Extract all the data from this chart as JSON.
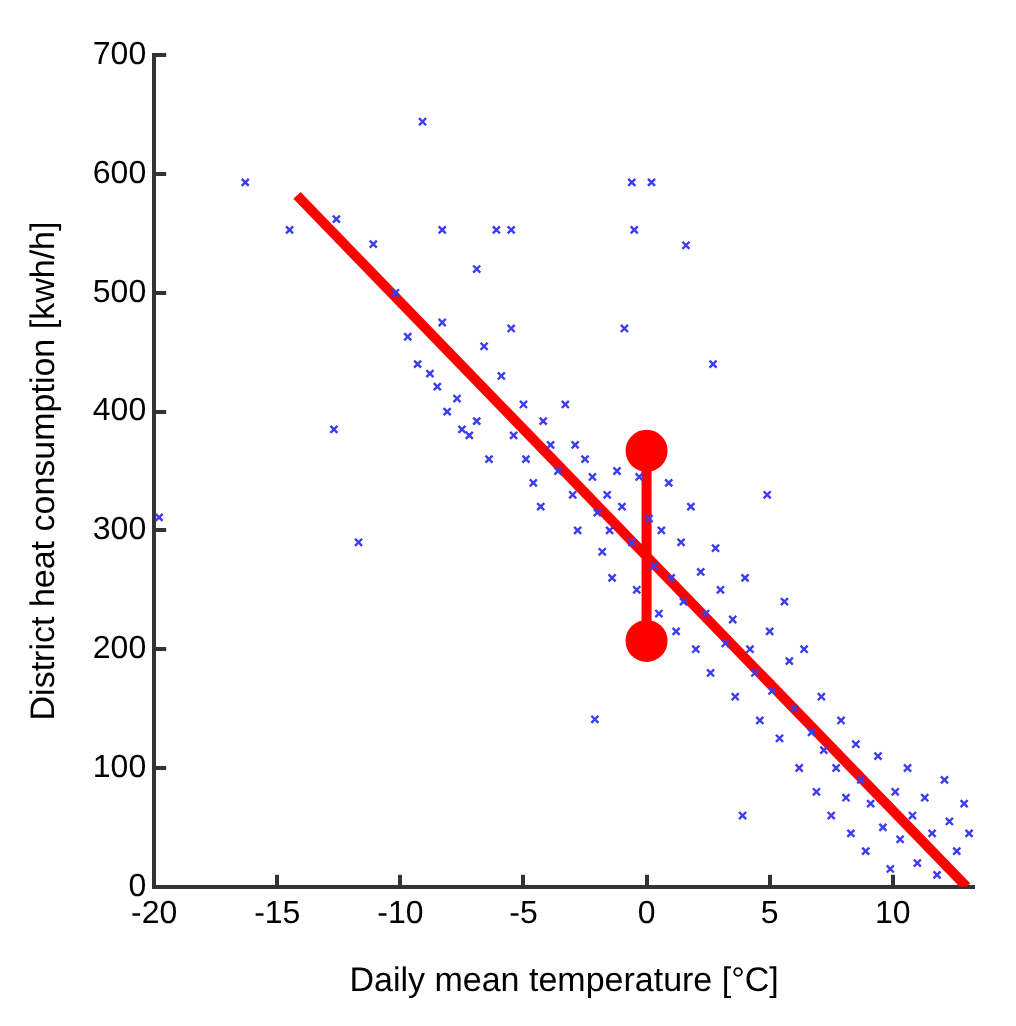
{
  "chart_data": {
    "type": "scatter",
    "xlabel": "Daily mean temperature [°C]",
    "ylabel": "District heat consumption [kwh/h]",
    "xlim": [
      -20,
      13.3
    ],
    "xticks": [
      -20,
      -15,
      -10,
      -5,
      0,
      5,
      10
    ],
    "ylim": [
      0,
      700
    ],
    "yticks": [
      0,
      100,
      200,
      300,
      400,
      500,
      600,
      700
    ],
    "grid": false,
    "legend": false,
    "marker": "cross",
    "series": [
      {
        "color": "#3c3cf0",
        "x": [
          -19.8,
          -16.3,
          -14.5,
          -12.6,
          -12.7,
          -11.7,
          -11.1,
          -10.2,
          -9.1,
          -9.7,
          -9.3,
          -8.5,
          -8.3,
          -8.3,
          -8.1,
          -8.8,
          -7.7,
          -7.5,
          -7.2,
          -6.9,
          -6.6,
          -6.9,
          -6.1,
          -5.5,
          -5.9,
          -5.5,
          -6.4,
          -5.4,
          -5.0,
          -4.9,
          -4.6,
          -4.2,
          -4.3,
          -3.9,
          -3.6,
          -3.3,
          -3.0,
          -2.8,
          -2.9,
          -2.5,
          -2.2,
          -2.1,
          -2.0,
          -1.8,
          -1.6,
          -1.5,
          -1.4,
          -1.2,
          -1.0,
          -0.9,
          -0.6,
          -0.5,
          -0.6,
          -0.4,
          -0.3,
          0.2,
          0.1,
          0.3,
          0.5,
          0.6,
          0.9,
          1.0,
          1.2,
          1.4,
          1.6,
          1.5,
          1.8,
          2.0,
          2.2,
          2.4,
          2.6,
          2.7,
          2.8,
          3.0,
          3.2,
          3.5,
          3.6,
          3.9,
          4.0,
          4.2,
          4.4,
          4.6,
          4.9,
          5.0,
          5.1,
          5.4,
          5.6,
          5.8,
          6.0,
          6.2,
          6.4,
          6.7,
          6.9,
          7.1,
          7.2,
          7.5,
          7.7,
          7.9,
          8.1,
          8.3,
          8.5,
          8.7,
          8.9,
          9.1,
          9.4,
          9.6,
          9.9,
          10.1,
          10.3,
          10.6,
          10.8,
          11.0,
          11.3,
          11.6,
          11.8,
          12.1,
          12.3,
          12.6,
          12.9,
          13.1
        ],
        "values": [
          311,
          593,
          553,
          562,
          385,
          290,
          541,
          500,
          644,
          463,
          440,
          421,
          553,
          475,
          400,
          432,
          411,
          385,
          380,
          392,
          455,
          520,
          553,
          553,
          430,
          470,
          360,
          380,
          406,
          360,
          340,
          392,
          320,
          372,
          350,
          406,
          330,
          300,
          372,
          360,
          345,
          141,
          315,
          282,
          330,
          300,
          260,
          350,
          320,
          470,
          593,
          553,
          290,
          250,
          345,
          593,
          310,
          270,
          230,
          300,
          340,
          260,
          215,
          290,
          540,
          240,
          320,
          200,
          265,
          230,
          180,
          440,
          285,
          250,
          205,
          225,
          160,
          60,
          260,
          200,
          180,
          140,
          330,
          215,
          165,
          125,
          240,
          190,
          150,
          100,
          200,
          130,
          80,
          160,
          115,
          60,
          100,
          140,
          75,
          45,
          120,
          90,
          30,
          70,
          110,
          50,
          15,
          80,
          40,
          100,
          60,
          20,
          75,
          45,
          10,
          90,
          55,
          30,
          70,
          45
        ]
      },
      {
        "type": "line",
        "color": "#ff0000",
        "marker": "none",
        "x": [
          -14.2,
          13.0
        ],
        "values": [
          582,
          0
        ]
      },
      {
        "type": "line",
        "color": "#ff0000",
        "marker": "circle",
        "x": [
          0,
          0
        ],
        "values": [
          367,
          207
        ]
      }
    ]
  }
}
